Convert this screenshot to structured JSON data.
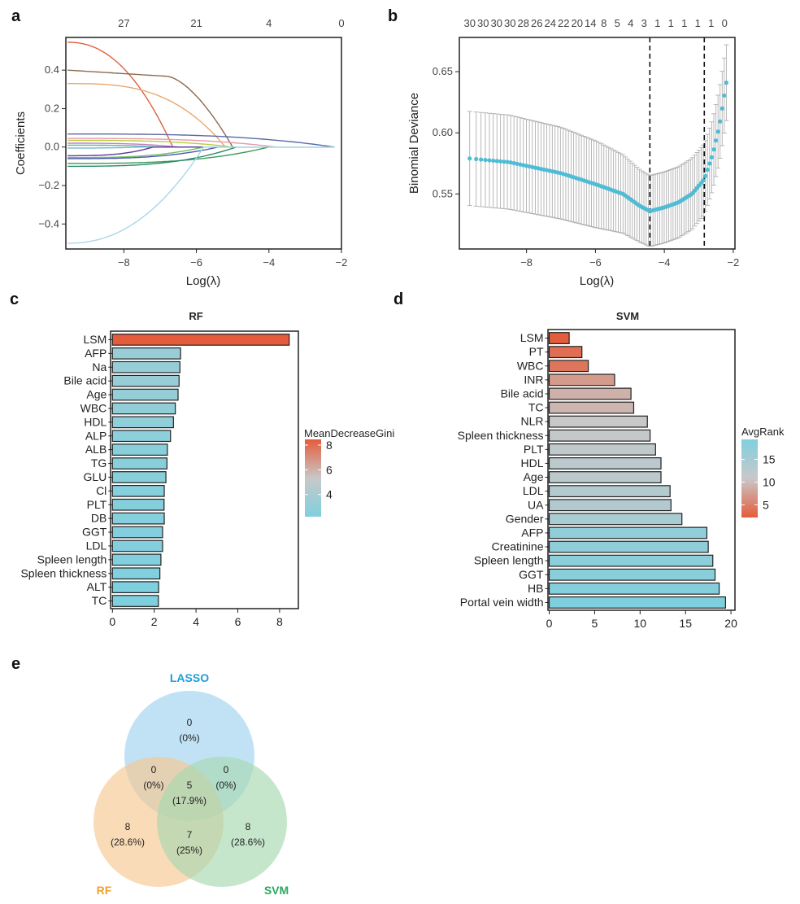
{
  "figure": {
    "panel_letters": [
      "a",
      "b",
      "c",
      "d",
      "e"
    ]
  },
  "chart_data": [
    {
      "id": "a",
      "type": "line",
      "title": "",
      "xlabel": "Log(λ)",
      "ylabel": "Coefficients",
      "xlim": [
        -9.6,
        -2.0
      ],
      "ylim": [
        -0.53,
        0.57
      ],
      "xticks": [
        -8,
        -6,
        -4,
        -2
      ],
      "yticks": [
        0.4,
        0.2,
        0.0,
        -0.2,
        -0.4
      ],
      "ytick_labels": [
        "0.4",
        "0.2",
        "0.0",
        "−0.2",
        "−0.4"
      ],
      "xtick_labels": [
        "−8",
        "−6",
        "−4",
        "−2"
      ],
      "top_axis": {
        "positions": [
          -8,
          -6,
          -4,
          -2
        ],
        "labels": [
          "27",
          "21",
          "4",
          "0"
        ]
      },
      "series": [
        {
          "name": "path-1",
          "color": "#e0603f",
          "start": 0.545,
          "zero_at": -6.65,
          "shape": "steep"
        },
        {
          "name": "path-2",
          "color": "#8a6a4f",
          "start": 0.4,
          "zero_at": -5.0,
          "shape": "plateau"
        },
        {
          "name": "path-3",
          "color": "#e8a870",
          "start": 0.33,
          "zero_at": -5.2,
          "shape": "gradual"
        },
        {
          "name": "path-4",
          "color": "#5a6aa8",
          "start": 0.068,
          "zero_at": -2.2,
          "shape": "gradual"
        },
        {
          "name": "path-5",
          "color": "#e89aa8",
          "start": 0.045,
          "zero_at": -3.8,
          "shape": "gradual"
        },
        {
          "name": "path-6",
          "color": "#b8cc40",
          "start": 0.035,
          "zero_at": -5.0,
          "shape": "gradual"
        },
        {
          "name": "path-7",
          "color": "#c080c0",
          "start": 0.02,
          "zero_at": -6.5,
          "shape": "gradual"
        },
        {
          "name": "path-8",
          "color": "#6ab0a0",
          "start": 0.01,
          "zero_at": -7.0,
          "shape": "gradual"
        },
        {
          "name": "path-9",
          "color": "#70b8d0",
          "start": -0.005,
          "zero_at": -7.5,
          "shape": "gradual"
        },
        {
          "name": "path-10",
          "color": "#5a3a9a",
          "start": -0.045,
          "zero_at": -7.2,
          "shape": "gradual"
        },
        {
          "name": "path-11",
          "color": "#70c060",
          "start": -0.055,
          "zero_at": -5.8,
          "shape": "gradual"
        },
        {
          "name": "path-12",
          "color": "#4a5ab0",
          "start": -0.06,
          "zero_at": -5.4,
          "shape": "gradual"
        },
        {
          "name": "path-13",
          "color": "#3a9a5a",
          "start": -0.085,
          "zero_at": -4.0,
          "shape": "gradual"
        },
        {
          "name": "path-14",
          "color": "#2a8a6a",
          "start": -0.1,
          "zero_at": -4.9,
          "shape": "gradual"
        },
        {
          "name": "path-15",
          "color": "#a8d8e8",
          "start": -0.5,
          "zero_at": -5.8,
          "shape": "steep"
        }
      ]
    },
    {
      "id": "b",
      "type": "scatter",
      "title": "",
      "xlabel": "Log(λ)",
      "ylabel": "Binomial Deviance",
      "xlim": [
        -9.95,
        -1.95
      ],
      "ylim": [
        0.505,
        0.678
      ],
      "xticks": [
        -8,
        -6,
        -4,
        -2
      ],
      "xtick_labels": [
        "−8",
        "−6",
        "−4",
        "−2"
      ],
      "yticks": [
        0.55,
        0.6,
        0.65
      ],
      "ytick_labels": [
        "0.55",
        "0.60",
        "0.65"
      ],
      "top_axis": {
        "labels": [
          "30",
          "30",
          "30",
          "30",
          "28",
          "26",
          "24",
          "22",
          "20",
          "14",
          "8",
          "5",
          "4",
          "3",
          "1",
          "1",
          "1",
          "1",
          "1",
          "0"
        ],
        "range": [
          -9.65,
          -2.25
        ]
      },
      "vlines": [
        -4.42,
        -2.84
      ],
      "point_color": "#4fbcd6",
      "errorbar_color": "#b0b0b0",
      "curve": {
        "x_start": -9.65,
        "x_end": -2.2,
        "n_points": 100,
        "knots": [
          {
            "x": -9.65,
            "mean": 0.579,
            "se": 0.0385
          },
          {
            "x": -8.5,
            "mean": 0.576,
            "se": 0.0385
          },
          {
            "x": -7.0,
            "mean": 0.567,
            "se": 0.0375
          },
          {
            "x": -6.0,
            "mean": 0.558,
            "se": 0.0355
          },
          {
            "x": -5.2,
            "mean": 0.55,
            "se": 0.032
          },
          {
            "x": -4.7,
            "mean": 0.54,
            "se": 0.0295
          },
          {
            "x": -4.42,
            "mean": 0.536,
            "se": 0.029
          },
          {
            "x": -4.0,
            "mean": 0.539,
            "se": 0.029
          },
          {
            "x": -3.6,
            "mean": 0.543,
            "se": 0.029
          },
          {
            "x": -3.2,
            "mean": 0.55,
            "se": 0.029
          },
          {
            "x": -2.84,
            "mean": 0.562,
            "se": 0.029
          },
          {
            "x": -2.6,
            "mean": 0.582,
            "se": 0.029
          },
          {
            "x": -2.4,
            "mean": 0.606,
            "se": 0.03
          },
          {
            "x": -2.2,
            "mean": 0.641,
            "se": 0.031
          }
        ]
      }
    },
    {
      "id": "c",
      "type": "bar",
      "orientation": "horizontal",
      "title": "RF",
      "xlabel": "",
      "ylabel": "",
      "xlim": [
        0,
        8.9
      ],
      "xticks": [
        0,
        2,
        4,
        6,
        8
      ],
      "categories": [
        "LSM",
        "AFP",
        "Na",
        "Bile acid",
        "Age",
        "WBC",
        "HDL",
        "ALP",
        "ALB",
        "TG",
        "GLU",
        "Cl",
        "PLT",
        "DB",
        "GGT",
        "LDL",
        "Spleen length",
        "Spleen thickness",
        "ALT",
        "TC"
      ],
      "values": [
        8.46,
        3.26,
        3.23,
        3.19,
        3.14,
        3.01,
        2.92,
        2.78,
        2.63,
        2.61,
        2.56,
        2.48,
        2.47,
        2.48,
        2.4,
        2.4,
        2.32,
        2.27,
        2.21,
        2.2
      ],
      "legend": {
        "title": "MeanDecreaseGini",
        "ticks": [
          8,
          6,
          4
        ],
        "range": [
          2.2,
          8.46
        ],
        "low_color": "#7fd0de",
        "mid_color": "#c8c8c8",
        "high_color": "#e55c3c",
        "placement": "right"
      }
    },
    {
      "id": "d",
      "type": "bar",
      "orientation": "horizontal",
      "title": "SVM",
      "xlabel": "",
      "ylabel": "",
      "xlim": [
        0,
        20.5
      ],
      "xticks": [
        0,
        5,
        10,
        15,
        20
      ],
      "categories": [
        "LSM",
        "PT",
        "WBC",
        "INR",
        "Bile acid",
        "TC",
        "NLR",
        "Spleen thickness",
        "PLT",
        "HDL",
        "Age",
        "LDL",
        "UA",
        "Gender",
        "AFP",
        "Creatinine",
        "Spleen length",
        "GGT",
        "HB",
        "Portal vein width"
      ],
      "values": [
        2.2,
        3.6,
        4.3,
        7.2,
        9.0,
        9.3,
        10.8,
        11.1,
        11.7,
        12.3,
        12.3,
        13.3,
        13.4,
        14.6,
        17.35,
        17.5,
        18.0,
        18.25,
        18.7,
        19.4
      ],
      "legend": {
        "title": "AvgRank",
        "ticks": [
          15,
          10,
          5
        ],
        "range": [
          2.2,
          19.4
        ],
        "low_color": "#e55c3c",
        "mid_color": "#c8c8c8",
        "high_color": "#7fd0de",
        "placement": "right"
      }
    },
    {
      "id": "e",
      "type": "venn",
      "sets": [
        {
          "name": "LASSO",
          "color": "#9fd2f0",
          "label_color": "#1aa0d8"
        },
        {
          "name": "RF",
          "color": "#f8c890",
          "label_color": "#f0a030"
        },
        {
          "name": "SVM",
          "color": "#a8d8b0",
          "label_color": "#2aa860"
        }
      ],
      "regions": [
        {
          "sets": [
            "LASSO"
          ],
          "count": "0",
          "percent": "(0%)"
        },
        {
          "sets": [
            "LASSO",
            "RF"
          ],
          "count": "0",
          "percent": "(0%)"
        },
        {
          "sets": [
            "LASSO",
            "SVM"
          ],
          "count": "0",
          "percent": "(0%)"
        },
        {
          "sets": [
            "LASSO",
            "RF",
            "SVM"
          ],
          "count": "5",
          "percent": "(17.9%)"
        },
        {
          "sets": [
            "RF"
          ],
          "count": "8",
          "percent": "(28.6%)"
        },
        {
          "sets": [
            "RF",
            "SVM"
          ],
          "count": "7",
          "percent": "(25%)"
        },
        {
          "sets": [
            "SVM"
          ],
          "count": "8",
          "percent": "(28.6%)"
        }
      ]
    }
  ]
}
